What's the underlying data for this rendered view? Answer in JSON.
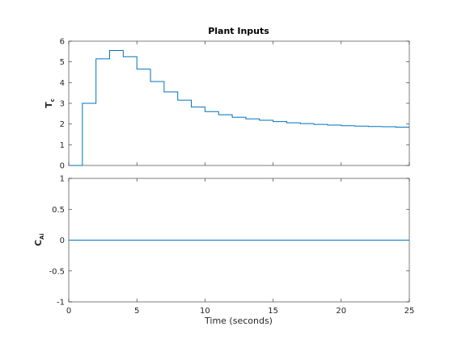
{
  "chart_data": [
    {
      "type": "line",
      "step": true,
      "title": "Plant Inputs",
      "ylabel": "T",
      "ylabel_sub": "c",
      "xlabel": "",
      "xlim": [
        0,
        25
      ],
      "ylim": [
        0,
        6
      ],
      "xticks": [
        0,
        5,
        10,
        15,
        20,
        25
      ],
      "yticks": [
        0,
        1,
        2,
        3,
        4,
        5,
        6
      ],
      "grid": false,
      "series": [
        {
          "x": [
            0,
            1,
            2,
            3,
            4,
            5,
            6,
            7,
            8,
            9,
            10,
            11,
            12,
            13,
            14,
            15,
            16,
            17,
            18,
            19,
            20,
            21,
            22,
            23,
            24,
            25
          ],
          "values": [
            0,
            3.0,
            5.15,
            5.55,
            5.25,
            4.65,
            4.05,
            3.55,
            3.15,
            2.82,
            2.6,
            2.45,
            2.33,
            2.25,
            2.18,
            2.12,
            2.06,
            2.02,
            1.98,
            1.95,
            1.92,
            1.9,
            1.88,
            1.87,
            1.85,
            1.85
          ]
        }
      ],
      "color": "#0072bd"
    },
    {
      "type": "line",
      "step": true,
      "title": "",
      "ylabel": "C",
      "ylabel_sub": "Ai",
      "xlabel": "Time (seconds)",
      "xlim": [
        0,
        25
      ],
      "ylim": [
        -1,
        1
      ],
      "xticks": [
        0,
        5,
        10,
        15,
        20,
        25
      ],
      "yticks": [
        -1,
        -0.5,
        0,
        0.5,
        1
      ],
      "grid": false,
      "series": [
        {
          "x": [
            0,
            25
          ],
          "values": [
            0,
            0
          ]
        }
      ],
      "color": "#0072bd"
    }
  ]
}
